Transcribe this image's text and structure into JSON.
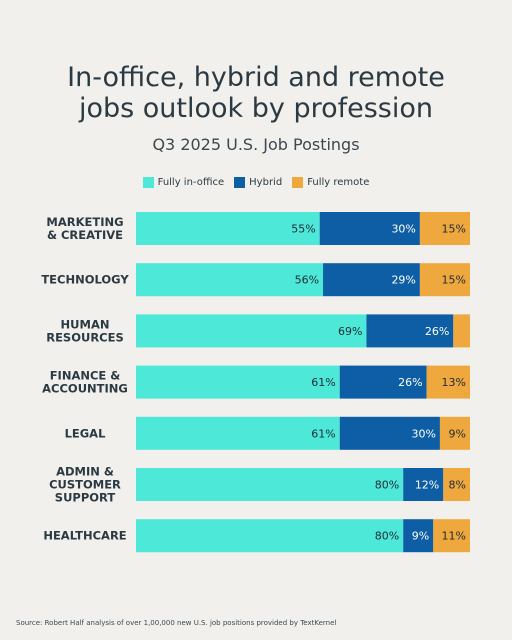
{
  "title_line1": "In-office, hybrid and remote",
  "title_line2": "jobs outlook by profession",
  "subtitle": "Q3 2025 U.S. Job Postings",
  "source": "Source: Robert Half analysis of over 1,00,000 new U.S. job positions provided by TextKernel",
  "colors": {
    "in_office": "#4de8d8",
    "hybrid": "#0e5ea6",
    "remote": "#eea83d"
  },
  "chart_data": {
    "type": "bar",
    "orientation": "horizontal",
    "stacked": true,
    "categories": [
      [
        "MARKETING",
        "& CREATIVE"
      ],
      [
        "TECHNOLOGY"
      ],
      [
        "HUMAN",
        "RESOURCES"
      ],
      [
        "FINANCE &",
        "ACCOUNTING"
      ],
      [
        "LEGAL"
      ],
      [
        "ADMIN &",
        "CUSTOMER",
        "SUPPORT"
      ],
      [
        "HEALTHCARE"
      ]
    ],
    "series": [
      {
        "name": "Fully in-office",
        "values": [
          55,
          56,
          69,
          61,
          61,
          80,
          80
        ],
        "labels": [
          "55%",
          "56%",
          "69%",
          "61%",
          "61%",
          "80%",
          "80%"
        ]
      },
      {
        "name": "Hybrid",
        "values": [
          30,
          29,
          26,
          26,
          30,
          12,
          9
        ],
        "labels": [
          "30%",
          "29%",
          "26%",
          "26%",
          "30%",
          "12%",
          "9%"
        ]
      },
      {
        "name": "Fully remote",
        "values": [
          15,
          15,
          5,
          13,
          9,
          8,
          11
        ],
        "labels": [
          "15%",
          "15%",
          "",
          "13%",
          "9%",
          "8%",
          "11%"
        ]
      }
    ],
    "xlim": [
      0,
      100
    ],
    "legend": "top-center",
    "grid": false
  }
}
